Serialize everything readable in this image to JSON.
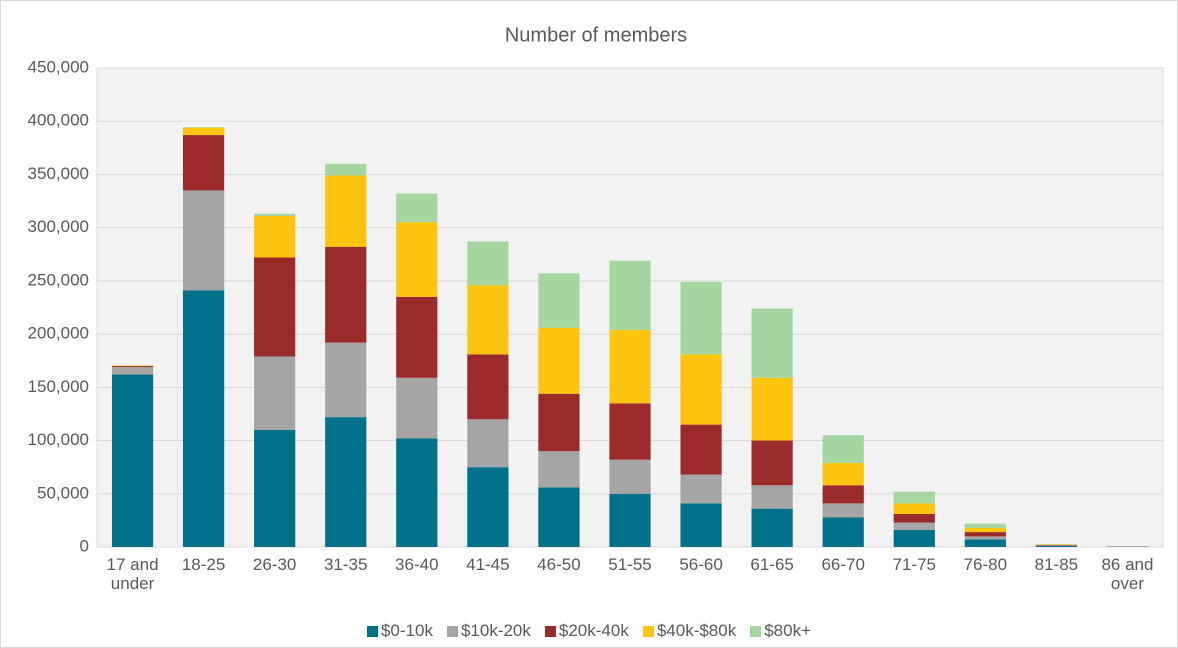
{
  "chart_data": {
    "type": "stacked_bar",
    "title": "Number of members",
    "categories": [
      "17 and under",
      "18-25",
      "26-30",
      "31-35",
      "36-40",
      "41-45",
      "46-50",
      "51-55",
      "56-60",
      "61-65",
      "66-70",
      "71-75",
      "76-80",
      "81-85",
      "86 and over"
    ],
    "series": [
      {
        "name": "$0-10k",
        "color": "#00718b",
        "values": [
          162000,
          241000,
          110000,
          122000,
          102000,
          75000,
          56000,
          50000,
          41000,
          36000,
          28000,
          16000,
          7000,
          1000,
          300
        ]
      },
      {
        "name": "$10k-20k",
        "color": "#a5a5a5",
        "values": [
          7000,
          94000,
          69000,
          70000,
          57000,
          45000,
          34000,
          32000,
          27000,
          22000,
          13000,
          7000,
          3000,
          500,
          100
        ]
      },
      {
        "name": "$20k-40k",
        "color": "#9b2b2b",
        "values": [
          1000,
          52000,
          93000,
          90000,
          76000,
          61000,
          54000,
          53000,
          47000,
          42000,
          17000,
          8000,
          4000,
          500,
          100
        ]
      },
      {
        "name": "$40k-$80k",
        "color": "#fdc412",
        "values": [
          500,
          7000,
          39000,
          67000,
          70000,
          65000,
          62000,
          69000,
          66000,
          59000,
          21000,
          10000,
          4000,
          500,
          100
        ]
      },
      {
        "name": "$80k+",
        "color": "#a5d6a0",
        "values": [
          0,
          500,
          2000,
          11000,
          27000,
          41000,
          51000,
          65000,
          68000,
          65000,
          26000,
          11000,
          4000,
          300,
          100
        ]
      }
    ],
    "ylim": [
      0,
      450000
    ],
    "yticks": [
      0,
      {
        "value": 50000,
        "label": "50,000"
      },
      {
        "value": 100000,
        "label": "100,000"
      },
      {
        "value": 150000,
        "label": "150,000"
      },
      {
        "value": 200000,
        "label": "200,000"
      },
      {
        "value": 250000,
        "label": "250,000"
      },
      {
        "value": 300000,
        "label": "300,000"
      },
      {
        "value": 350000,
        "label": "350,000"
      },
      {
        "value": 400000,
        "label": "400,000"
      },
      {
        "value": 450000,
        "label": "450,000"
      }
    ],
    "grid": true,
    "legend": "bottom"
  }
}
